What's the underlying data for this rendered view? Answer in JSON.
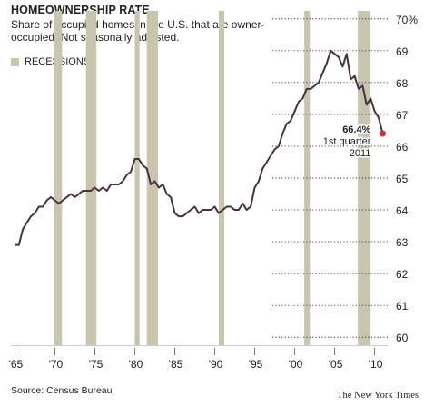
{
  "header": {
    "title": "HOMEOWNERSHIP RATE",
    "subtitle": "Share of occupied homes in the U.S. that are owner-occupied. Not seasonally adjusted.",
    "legend_label": "RECESSIONS"
  },
  "footer": {
    "source": "Source: Census Bureau",
    "credit": "The New York Times"
  },
  "annotation": {
    "value": "66.4%",
    "line1": "1st quarter",
    "line2": "2011"
  },
  "colors": {
    "line": "#4a2f3f",
    "recession": "#c9c4ae",
    "marker": "#c9393f",
    "grid": "#333333"
  },
  "chart_data": {
    "type": "line",
    "title": "HOMEOWNERSHIP RATE",
    "subtitle": "Share of occupied homes in the U.S. that are owner-occupied. Not seasonally adjusted.",
    "xlim": [
      1964.5,
      2011.75
    ],
    "ylim": [
      59.75,
      70.25
    ],
    "x_ticks": [
      1965,
      1970,
      1975,
      1980,
      1985,
      1990,
      1995,
      2000,
      2005,
      2010
    ],
    "x_tick_labels": [
      "'65",
      "'70",
      "'75",
      "'80",
      "'85",
      "'90",
      "'95",
      "'00",
      "'05",
      "'10"
    ],
    "y_ticks": [
      60,
      61,
      62,
      63,
      64,
      65,
      66,
      67,
      68,
      69,
      70
    ],
    "y_tick_labels": [
      "60",
      "61",
      "62",
      "63",
      "64",
      "65",
      "66",
      "67",
      "68",
      "69",
      "70%"
    ],
    "grid": "horizontal dotted",
    "legend": "top-left",
    "recessions": [
      [
        1969.9,
        1970.9
      ],
      [
        1973.9,
        1975.2
      ],
      [
        1980.0,
        1980.6
      ],
      [
        1981.5,
        1982.9
      ],
      [
        1990.5,
        1991.2
      ],
      [
        2001.2,
        2001.9
      ],
      [
        2007.9,
        2009.5
      ]
    ],
    "series": [
      {
        "x": [
          1965.0,
          1965.5,
          1966.0,
          1966.5,
          1967.0,
          1967.5,
          1968.0,
          1968.5,
          1969.0,
          1969.5,
          1970.0,
          1970.5,
          1971.0,
          1971.5,
          1972.0,
          1972.5,
          1973.0,
          1973.5,
          1974.0,
          1974.5,
          1975.0,
          1975.5,
          1976.0,
          1976.5,
          1977.0,
          1977.5,
          1978.0,
          1978.5,
          1979.0,
          1979.5,
          1980.0,
          1980.5,
          1981.0,
          1981.5,
          1982.0,
          1982.5,
          1983.0,
          1983.5,
          1984.0,
          1984.5,
          1985.0,
          1985.5,
          1986.0,
          1986.5,
          1987.0,
          1987.5,
          1988.0,
          1988.5,
          1989.0,
          1989.5,
          1990.0,
          1990.5,
          1991.0,
          1991.5,
          1992.0,
          1992.5,
          1993.0,
          1993.5,
          1994.0,
          1994.5,
          1995.0,
          1995.5,
          1996.0,
          1996.5,
          1997.0,
          1997.5,
          1998.0,
          1998.5,
          1999.0,
          1999.5,
          2000.0,
          2000.5,
          2001.0,
          2001.5,
          2002.0,
          2002.5,
          2003.0,
          2003.5,
          2004.0,
          2004.5,
          2005.0,
          2005.5,
          2006.0,
          2006.5,
          2007.0,
          2007.5,
          2008.0,
          2008.5,
          2009.0,
          2009.5,
          2010.0,
          2010.5,
          2011.0
        ],
        "values": [
          62.9,
          62.9,
          63.4,
          63.6,
          63.8,
          63.9,
          64.1,
          64.1,
          64.3,
          64.4,
          64.3,
          64.2,
          64.3,
          64.4,
          64.5,
          64.4,
          64.5,
          64.6,
          64.6,
          64.6,
          64.7,
          64.6,
          64.7,
          64.6,
          64.8,
          64.8,
          64.8,
          64.9,
          65.1,
          65.2,
          65.6,
          65.6,
          65.4,
          65.3,
          64.8,
          64.9,
          64.7,
          64.8,
          64.5,
          64.4,
          63.9,
          63.8,
          63.8,
          63.9,
          64.0,
          64.1,
          63.9,
          64.0,
          64.0,
          64.0,
          64.1,
          63.9,
          64.0,
          64.1,
          64.1,
          64.0,
          64.0,
          64.2,
          64.0,
          64.1,
          64.7,
          64.9,
          65.3,
          65.5,
          65.7,
          65.9,
          66.0,
          66.4,
          66.7,
          66.8,
          67.1,
          67.4,
          67.5,
          67.8,
          67.8,
          67.9,
          68.0,
          68.3,
          68.6,
          69.0,
          68.9,
          68.8,
          68.5,
          68.9,
          68.1,
          68.2,
          67.8,
          67.9,
          67.3,
          67.5,
          67.1,
          66.9,
          66.4
        ]
      }
    ]
  }
}
